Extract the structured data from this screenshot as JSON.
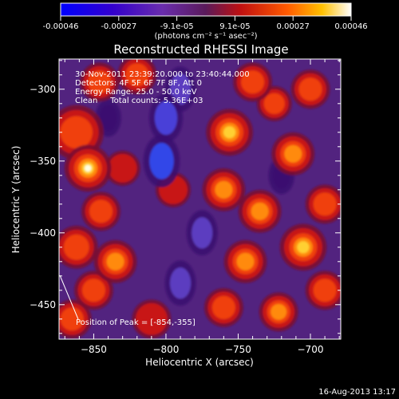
{
  "chart_data": {
    "type": "heatmap",
    "title": "Reconstructed RHESSI Image",
    "colorbar": {
      "ticks": [
        "-0.00046",
        "-0.00027",
        "-9.1e-05",
        "9.1e-05",
        "0.00027",
        "0.00046"
      ],
      "units": "(photons cm⁻² s⁻¹ asec⁻²)",
      "range": [
        -0.00046,
        0.00046
      ]
    },
    "info": [
      "30-Nov-2011 23:39:20.000 to 23:40:44.000",
      "Detectors: 4F 5F 6F 7F 8F, Att 0",
      "Energy Range: 25.0 - 50.0 keV",
      "Clean     Total counts: 5.36E+03"
    ],
    "peak_label": "Position of Peak = [-854,-355]",
    "xlabel": "Heliocentric X (arcsec)",
    "ylabel": "Heliocentric Y (arcsec)",
    "xlim": [
      -874,
      -679
    ],
    "ylim": [
      -474,
      -279
    ],
    "xticks": [
      -850,
      -800,
      -750,
      -700
    ],
    "yticks": [
      -300,
      -350,
      -400,
      -450
    ],
    "blobs": [
      {
        "x": -854,
        "y": -355,
        "v": 1.0,
        "r": 12
      },
      {
        "x": -862,
        "y": -330,
        "v": 0.55,
        "r": 14
      },
      {
        "x": -846,
        "y": -295,
        "v": 0.5,
        "r": 10
      },
      {
        "x": -820,
        "y": -290,
        "v": 0.45,
        "r": 10
      },
      {
        "x": -756,
        "y": -330,
        "v": 0.75,
        "r": 12
      },
      {
        "x": -740,
        "y": -295,
        "v": 0.5,
        "r": 10
      },
      {
        "x": -725,
        "y": -310,
        "v": 0.45,
        "r": 9
      },
      {
        "x": -700,
        "y": -300,
        "v": 0.5,
        "r": 10
      },
      {
        "x": -712,
        "y": -345,
        "v": 0.6,
        "r": 11
      },
      {
        "x": -760,
        "y": -370,
        "v": 0.6,
        "r": 11
      },
      {
        "x": -735,
        "y": -385,
        "v": 0.7,
        "r": 11
      },
      {
        "x": -690,
        "y": -380,
        "v": 0.55,
        "r": 10
      },
      {
        "x": -705,
        "y": -410,
        "v": 0.8,
        "r": 12
      },
      {
        "x": -745,
        "y": -420,
        "v": 0.65,
        "r": 11
      },
      {
        "x": -690,
        "y": -440,
        "v": 0.55,
        "r": 10
      },
      {
        "x": -722,
        "y": -455,
        "v": 0.6,
        "r": 10
      },
      {
        "x": -760,
        "y": -452,
        "v": 0.45,
        "r": 10
      },
      {
        "x": -845,
        "y": -385,
        "v": 0.5,
        "r": 10
      },
      {
        "x": -862,
        "y": -410,
        "v": 0.55,
        "r": 11
      },
      {
        "x": -835,
        "y": -420,
        "v": 0.6,
        "r": 11
      },
      {
        "x": -850,
        "y": -440,
        "v": 0.5,
        "r": 10
      },
      {
        "x": -865,
        "y": -460,
        "v": 0.45,
        "r": 10
      },
      {
        "x": -810,
        "y": -460,
        "v": 0.4,
        "r": 10
      },
      {
        "x": -795,
        "y": -370,
        "v": 0.35,
        "r": 9
      },
      {
        "x": -830,
        "y": -355,
        "v": 0.35,
        "r": 9
      },
      {
        "x": -800,
        "y": -320,
        "v": -0.8,
        "r": 13
      },
      {
        "x": -803,
        "y": -350,
        "v": -0.9,
        "r": 14
      },
      {
        "x": -790,
        "y": -300,
        "v": -0.6,
        "r": 12
      },
      {
        "x": -775,
        "y": -400,
        "v": -0.55,
        "r": 12
      },
      {
        "x": -790,
        "y": -435,
        "v": -0.5,
        "r": 12
      },
      {
        "x": -720,
        "y": -360,
        "v": -0.4,
        "r": 10
      },
      {
        "x": -840,
        "y": -320,
        "v": -0.35,
        "r": 10
      }
    ]
  },
  "footer": {
    "timestamp": "16-Aug-2013 13:17"
  }
}
